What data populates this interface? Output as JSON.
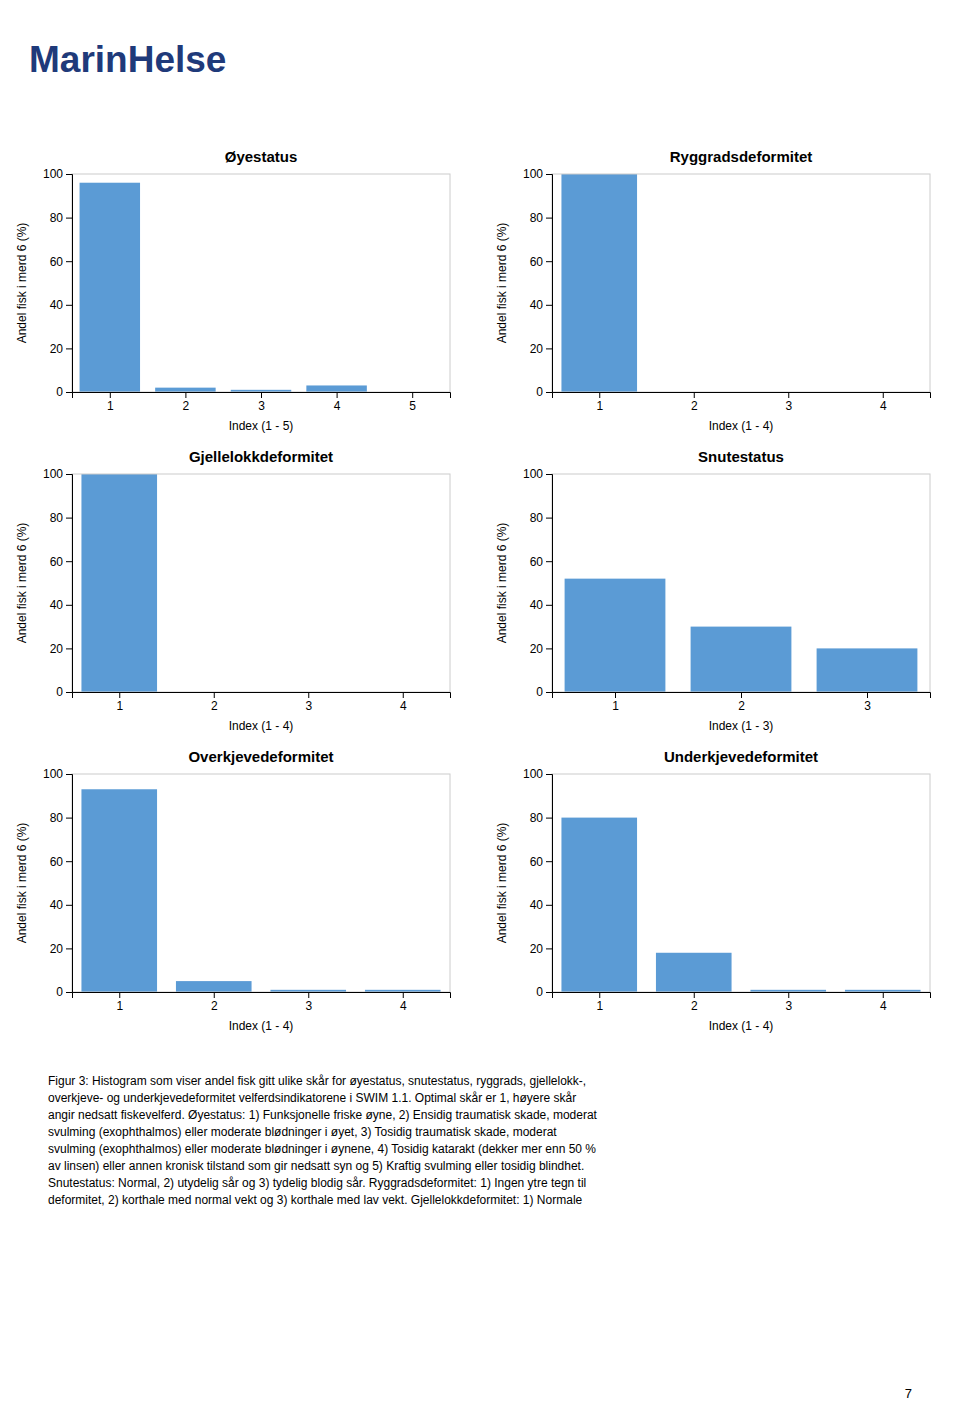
{
  "chart_data": [
    {
      "type": "bar",
      "title": "Øyestatus",
      "xlabel": "Index (1 - 5)",
      "ylabel": "Andel fisk i merd 6 (%)",
      "x": [
        1,
        2,
        3,
        4,
        5
      ],
      "values": [
        96,
        2,
        1,
        3,
        0
      ],
      "color": "#5B9BD5",
      "xlim": [
        0.5,
        5.5
      ],
      "xticks": [
        1,
        2,
        3,
        4,
        5
      ],
      "ylim": [
        0,
        100
      ],
      "yticks": [
        0,
        20,
        40,
        60,
        80,
        100
      ]
    },
    {
      "type": "bar",
      "title": "Ryggradsdeformitet",
      "xlabel": "Index (1 - 4)",
      "ylabel": "Andel fisk i merd 6 (%)",
      "x": [
        1,
        2,
        3,
        4
      ],
      "values": [
        100,
        0,
        0,
        0
      ],
      "color": "#5B9BD5",
      "xlim": [
        0.5,
        4.5
      ],
      "xticks": [
        1,
        2,
        3,
        4
      ],
      "ylim": [
        0,
        100
      ],
      "yticks": [
        0,
        20,
        40,
        60,
        80,
        100
      ]
    },
    {
      "type": "bar",
      "title": "Gjellelokkdeformitet",
      "xlabel": "Index (1 - 4)",
      "ylabel": "Andel fisk i merd 6 (%)",
      "x": [
        1,
        2,
        3,
        4
      ],
      "values": [
        100,
        0,
        0,
        0
      ],
      "color": "#5B9BD5",
      "xlim": [
        0.5,
        4.5
      ],
      "xticks": [
        1,
        2,
        3,
        4
      ],
      "ylim": [
        0,
        100
      ],
      "yticks": [
        0,
        20,
        40,
        60,
        80,
        100
      ]
    },
    {
      "type": "bar",
      "title": "Snutestatus",
      "xlabel": "Index (1 - 3)",
      "ylabel": "Andel fisk i merd 6 (%)",
      "x": [
        1,
        2,
        3
      ],
      "values": [
        52,
        30,
        20
      ],
      "color": "#5B9BD5",
      "xlim": [
        0.5,
        3.5
      ],
      "xticks": [
        1,
        2,
        3
      ],
      "ylim": [
        0,
        100
      ],
      "yticks": [
        0,
        20,
        40,
        60,
        80,
        100
      ]
    },
    {
      "type": "bar",
      "title": "Overkjevedeformitet",
      "xlabel": "Index (1 - 4)",
      "ylabel": "Andel fisk i merd 6 (%)",
      "x": [
        1,
        2,
        3,
        4
      ],
      "values": [
        93,
        5,
        1,
        1
      ],
      "color": "#5B9BD5",
      "xlim": [
        0.5,
        4.5
      ],
      "xticks": [
        1,
        2,
        3,
        4
      ],
      "ylim": [
        0,
        100
      ],
      "yticks": [
        0,
        20,
        40,
        60,
        80,
        100
      ]
    },
    {
      "type": "bar",
      "title": "Underkjevedeformitet",
      "xlabel": "Index (1 - 4)",
      "ylabel": "Andel fisk i merd 6 (%)",
      "x": [
        1,
        2,
        3,
        4
      ],
      "values": [
        80,
        18,
        1,
        1
      ],
      "color": "#5B9BD5",
      "xlim": [
        0.5,
        4.5
      ],
      "xticks": [
        1,
        2,
        3,
        4
      ],
      "ylim": [
        0,
        100
      ],
      "yticks": [
        0,
        20,
        40,
        60,
        80,
        100
      ]
    }
  ],
  "logo_text": "MarinHelse",
  "logo_color": "#1F3A7A",
  "caption": [
    "Figur 3: Histogram som viser andel fisk gitt ulike skår for øyestatus, snutestatus, ryggrads, gjellelokk-,",
    "overkjeve- og underkjevedeformitet velferdsindikatorene i SWIM 1.1. Optimal skår er 1, høyere skår",
    "angir nedsatt fiskevelferd. Øyestatus: 1) Funksjonelle friske øyne, 2) Ensidig traumatisk skade, moderat",
    "svulming (exophthalmos) eller moderate blødninger i øyet, 3) Tosidig traumatisk skade, moderat",
    "svulming (exophthalmos) eller moderate blødninger i øynene, 4) Tosidig katarakt (dekker mer enn 50 %",
    "av linsen) eller annen kronisk tilstand som gir nedsatt syn og 5) Kraftig svulming eller tosidig blindhet.",
    "Snutestatus: Normal, 2) utydelig sår og 3) tydelig blodig sår. Ryggradsdeformitet: 1) Ingen ytre tegn til",
    "deformitet, 2) korthale med normal vekt og 3) korthale med lav vekt. Gjellelokkdeformitet: 1) Normale"
  ],
  "page_number": "7"
}
